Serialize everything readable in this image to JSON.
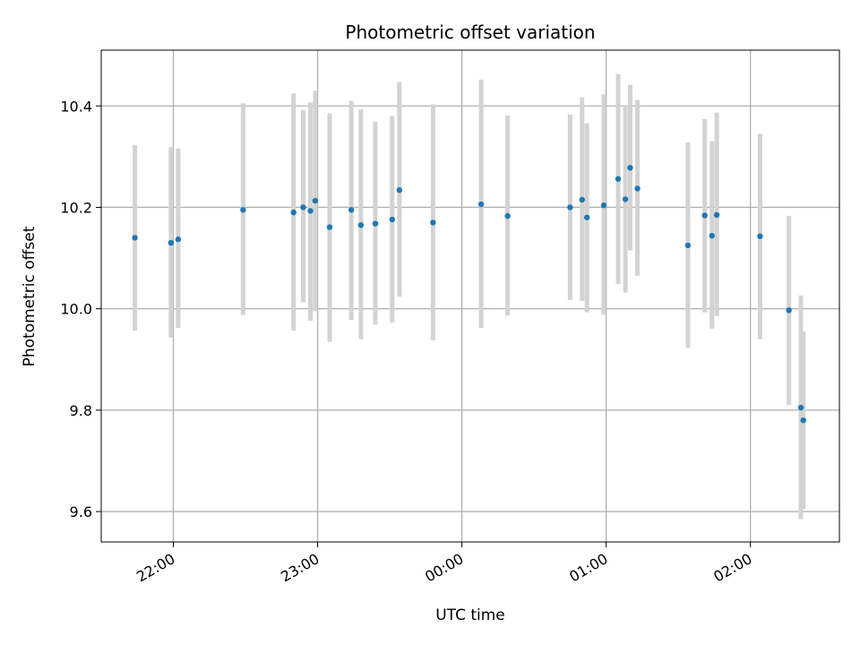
{
  "chart_data": {
    "type": "scatter",
    "title": "Photometric offset variation",
    "xlabel": "UTC time",
    "ylabel": "Photometric offset",
    "x_ticks": [
      "22:00",
      "23:00",
      "00:00",
      "01:00",
      "02:00"
    ],
    "y_ticks": [
      "9.6",
      "9.8",
      "10.0",
      "10.2",
      "10.4"
    ],
    "x_tick_values": [
      "22:00",
      "23:00",
      "00:00",
      "01:00",
      "02:00"
    ],
    "y_tick_values": [
      9.6,
      9.8,
      10.0,
      10.2,
      10.4
    ],
    "xlim": [
      "21:30",
      "02:37"
    ],
    "ylim": [
      9.54,
      10.51
    ],
    "grid": true,
    "colors": {
      "point": "#1f77b4",
      "errorbar": "#d3d3d3",
      "grid": "#b0b0b0"
    },
    "series": [
      {
        "points": [
          {
            "t": "21:44",
            "y": 10.14,
            "lo": 9.957,
            "hi": 10.323
          },
          {
            "t": "21:59",
            "y": 10.13,
            "lo": 9.943,
            "hi": 10.319
          },
          {
            "t": "22:02",
            "y": 10.137,
            "lo": 9.962,
            "hi": 10.316
          },
          {
            "t": "22:29",
            "y": 10.195,
            "lo": 9.988,
            "hi": 10.405
          },
          {
            "t": "22:50",
            "y": 10.19,
            "lo": 9.957,
            "hi": 10.425
          },
          {
            "t": "22:54",
            "y": 10.2,
            "lo": 10.013,
            "hi": 10.392
          },
          {
            "t": "22:57",
            "y": 10.193,
            "lo": 9.976,
            "hi": 10.407
          },
          {
            "t": "22:59",
            "y": 10.213,
            "lo": 9.995,
            "hi": 10.43
          },
          {
            "t": "23:05",
            "y": 10.161,
            "lo": 9.935,
            "hi": 10.385
          },
          {
            "t": "23:14",
            "y": 10.195,
            "lo": 9.978,
            "hi": 10.41
          },
          {
            "t": "23:18",
            "y": 10.165,
            "lo": 9.94,
            "hi": 10.393
          },
          {
            "t": "23:24",
            "y": 10.168,
            "lo": 9.969,
            "hi": 10.369
          },
          {
            "t": "23:31",
            "y": 10.176,
            "lo": 9.973,
            "hi": 10.38
          },
          {
            "t": "23:34",
            "y": 10.234,
            "lo": 10.024,
            "hi": 10.447
          },
          {
            "t": "23:48",
            "y": 10.17,
            "lo": 9.938,
            "hi": 10.403
          },
          {
            "t": "00:08",
            "y": 10.206,
            "lo": 9.962,
            "hi": 10.452
          },
          {
            "t": "00:19",
            "y": 10.183,
            "lo": 9.987,
            "hi": 10.381
          },
          {
            "t": "00:45",
            "y": 10.2,
            "lo": 10.017,
            "hi": 10.383
          },
          {
            "t": "00:50",
            "y": 10.215,
            "lo": 10.015,
            "hi": 10.417
          },
          {
            "t": "00:52",
            "y": 10.18,
            "lo": 9.993,
            "hi": 10.366
          },
          {
            "t": "00:59",
            "y": 10.204,
            "lo": 9.988,
            "hi": 10.423
          },
          {
            "t": "01:05",
            "y": 10.256,
            "lo": 10.049,
            "hi": 10.463
          },
          {
            "t": "01:08",
            "y": 10.216,
            "lo": 10.032,
            "hi": 10.401
          },
          {
            "t": "01:10",
            "y": 10.278,
            "lo": 10.115,
            "hi": 10.442
          },
          {
            "t": "01:13",
            "y": 10.237,
            "lo": 10.065,
            "hi": 10.412
          },
          {
            "t": "01:34",
            "y": 10.125,
            "lo": 9.923,
            "hi": 10.328
          },
          {
            "t": "01:41",
            "y": 10.184,
            "lo": 9.993,
            "hi": 10.374
          },
          {
            "t": "01:44",
            "y": 10.144,
            "lo": 9.961,
            "hi": 10.33
          },
          {
            "t": "01:46",
            "y": 10.185,
            "lo": 9.986,
            "hi": 10.387
          },
          {
            "t": "02:04",
            "y": 10.143,
            "lo": 9.94,
            "hi": 10.345
          },
          {
            "t": "02:16",
            "y": 9.997,
            "lo": 9.81,
            "hi": 10.183
          },
          {
            "t": "02:21",
            "y": 9.805,
            "lo": 9.585,
            "hi": 10.026
          },
          {
            "t": "02:22",
            "y": 9.78,
            "lo": 9.605,
            "hi": 9.955
          }
        ]
      }
    ]
  }
}
